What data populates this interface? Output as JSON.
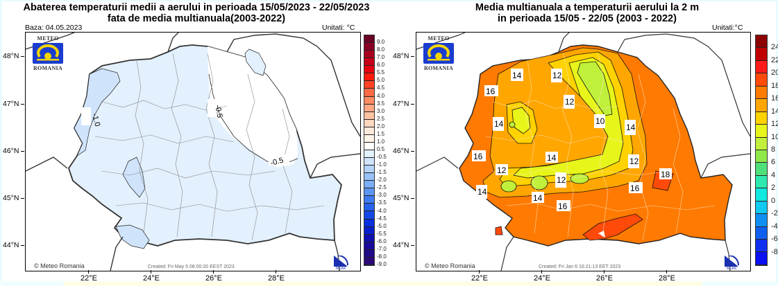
{
  "left_panel": {
    "title_line1": "Abaterea temperaturii medii a aerului in perioada 15/05/2023 - 22/05/2023",
    "title_line2": "fata de media multianuala(2003-2022)",
    "base_label": "Baza: 04.05.2023",
    "units_label": "Unitati: °C",
    "lat_labels": [
      "48°N",
      "47°N",
      "46°N",
      "45°N",
      "44°N"
    ],
    "lon_labels": [
      "22°E",
      "24°E",
      "26°E",
      "28°E"
    ],
    "logo": {
      "top": "METEO",
      "bottom": "ROMANIA"
    },
    "copyright": "© Meteo Romania",
    "created": "Created: Fri May  5 08:00:20 EEST 2023",
    "ncar": "NCAR",
    "contour_labels": [
      "-1.0",
      "-0.5",
      "-0.5"
    ],
    "colorbar": {
      "labels": [
        "9.0",
        "8.0",
        "7.0",
        "6.0",
        "5.5",
        "5.0",
        "4.5",
        "4.0",
        "3.5",
        "3.0",
        "2.5",
        "2.0",
        "1.5",
        "1.0",
        "0.5",
        "-0.5",
        "-1.0",
        "-1.5",
        "-2.0",
        "-2.5",
        "-3.0",
        "-3.5",
        "-4.0",
        "-4.5",
        "-5.0",
        "-5.5",
        "-6.0",
        "-7.0",
        "-8.0",
        "-9.0"
      ],
      "colors": [
        "#6b0026",
        "#8a0024",
        "#a8001f",
        "#c8001a",
        "#e60012",
        "#ff1a0d",
        "#ff4426",
        "#ff6a45",
        "#ff8c63",
        "#ffa882",
        "#ffc3a3",
        "#ffd8c0",
        "#ffe9da",
        "#fff3ea",
        "#ffffff",
        "#e3f0fd",
        "#cfe3fb",
        "#b4d3fa",
        "#98c2f8",
        "#7aaef6",
        "#5c96f4",
        "#3f7cf2",
        "#2662ee",
        "#1448e8",
        "#0a30e0",
        "#0a1fcc",
        "#1010b0",
        "#1a0a9a",
        "#220a88",
        "#2b0a78"
      ]
    }
  },
  "right_panel": {
    "title_line1": "Media multianuala a temperaturii aerului la 2 m",
    "title_line2": "in perioada 15/05 - 22/05 (2003 - 2022)",
    "units_label": "Unitati:°C",
    "lat_labels": [
      "48°N",
      "47°N",
      "46°N",
      "45°N",
      "44°N"
    ],
    "lon_labels": [
      "22°E",
      "24°E",
      "26°E",
      "28°E"
    ],
    "logo": {
      "top": "METEO",
      "bottom": "ROMANIA"
    },
    "copyright": "© Meteo Romania",
    "created": "Created: Fri Jan  6 16:21:13 EET 2023",
    "ncar": "NCAR",
    "contour_labels": [
      "14",
      "12",
      "16",
      "12",
      "14",
      "10",
      "14",
      "16",
      "14",
      "12",
      "12",
      "14",
      "12",
      "14",
      "16",
      "12",
      "18",
      "16",
      "14"
    ],
    "colorbar": {
      "labels": [
        "24",
        "22",
        "20",
        "18",
        "16",
        "14",
        "12",
        "10",
        "8",
        "6",
        "4",
        "2",
        "0",
        "-2",
        "-4",
        "-6",
        "-8"
      ],
      "colors": [
        "#8b0000",
        "#c00000",
        "#ff1a1a",
        "#ff4a0a",
        "#ff7a00",
        "#ffa600",
        "#ffd200",
        "#e8f51a",
        "#c0f03a",
        "#8fe84a",
        "#4fe07a",
        "#2fe8b0",
        "#10e8e0",
        "#10c8f0",
        "#1090f0",
        "#1060f0",
        "#1030f0",
        "#0a10f0"
      ]
    }
  }
}
